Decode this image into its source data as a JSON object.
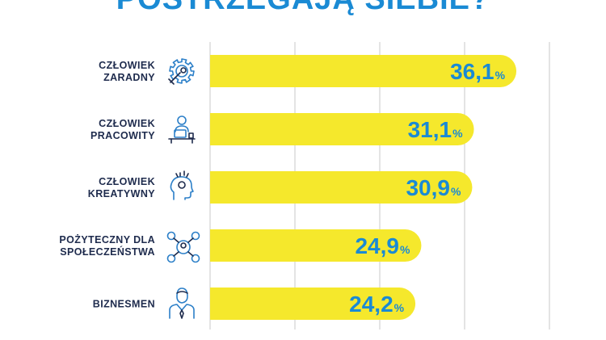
{
  "title": "POSTRZEGAJĄ SIEBIE?",
  "chart_data": {
    "type": "bar",
    "orientation": "horizontal",
    "categories": [
      [
        "CZŁOWIEK",
        "ZARADNY"
      ],
      [
        "CZŁOWIEK",
        "PRACOWITY"
      ],
      [
        "CZŁOWIEK",
        "KREATYWNY"
      ],
      [
        "POŻYTECZNY DLA",
        "SPOŁECZEŃSTWA"
      ],
      [
        "BIZNESMEN"
      ]
    ],
    "values": [
      36.1,
      31.1,
      30.9,
      24.9,
      24.2
    ],
    "value_labels": [
      "36,1",
      "31,1",
      "30,9",
      "24,9",
      "24,2"
    ],
    "value_suffix": "%",
    "icons": [
      "gear-icon",
      "worker-at-desk-icon",
      "creative-head-icon",
      "network-people-icon",
      "businessman-icon"
    ],
    "xlim": [
      0,
      40
    ],
    "grid": true,
    "colors": {
      "bar": "#f5e82c",
      "value": "#1a8ad4",
      "label": "#1e2b4d",
      "icon": "#2b7fc8",
      "grid": "#c8c8c8"
    }
  }
}
